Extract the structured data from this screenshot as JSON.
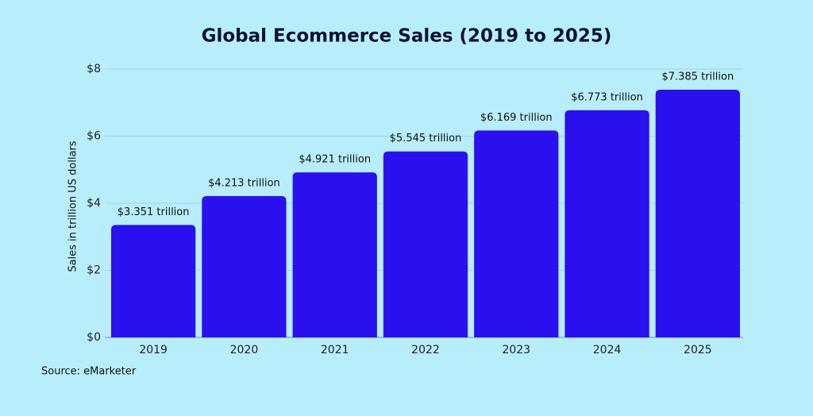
{
  "chart_data": {
    "type": "bar",
    "title": "Global Ecommerce Sales (2019 to 2025)",
    "ylabel": "Sales in trillion US dollars",
    "source": "Source: eMarketer",
    "categories": [
      "2019",
      "2020",
      "2021",
      "2022",
      "2023",
      "2024",
      "2025"
    ],
    "values": [
      3.351,
      4.213,
      4.921,
      5.545,
      6.169,
      6.773,
      7.385
    ],
    "value_labels": [
      "$3.351 trillion",
      "$4.213 trillion",
      "$4.921 trillion",
      "$5.545 trillion",
      "$6.169 trillion",
      "$6.773 trillion",
      "$7.385 trillion"
    ],
    "color": "#2a10ef",
    "ylim": [
      0,
      8
    ],
    "yticks": [
      {
        "value": 0,
        "label": "$0"
      },
      {
        "value": 2,
        "label": "$2"
      },
      {
        "value": 4,
        "label": "$4"
      },
      {
        "value": 6,
        "label": "$6"
      },
      {
        "value": 8,
        "label": "$8"
      }
    ],
    "grid": true
  }
}
